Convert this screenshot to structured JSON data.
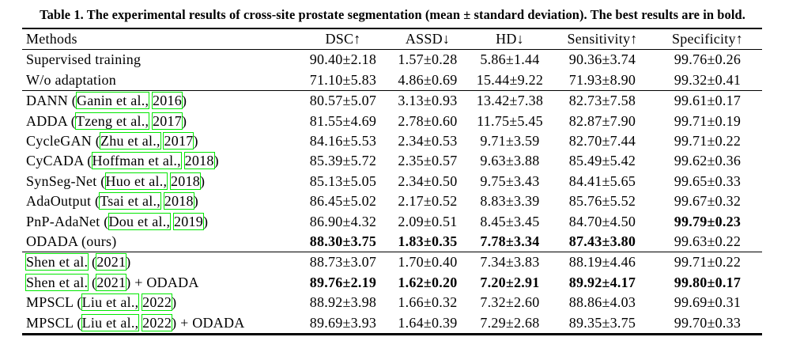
{
  "caption": "Table 1. The experimental results of cross-site prostate segmentation (mean ± standard deviation). The best results are in bold.",
  "colors": {
    "citation_box": "#00e800"
  },
  "table": {
    "columns": [
      "Methods",
      "DSC↑",
      "ASSD↓",
      "HD↓",
      "Sensitivity↑",
      "Specificity↑"
    ],
    "rows": [
      {
        "method": [
          {
            "t": "Supervised training"
          }
        ],
        "values": [
          "90.40±2.18",
          "1.57±0.28",
          "5.86±1.44",
          "90.36±3.74",
          "99.76±0.26"
        ],
        "bold": [
          false,
          false,
          false,
          false,
          false
        ],
        "rule_below": false
      },
      {
        "method": [
          {
            "t": "W/o adaptation"
          }
        ],
        "values": [
          "71.10±5.83",
          "4.86±0.69",
          "15.44±9.22",
          "71.93±8.90",
          "99.32±0.41"
        ],
        "bold": [
          false,
          false,
          false,
          false,
          false
        ],
        "rule_below": true
      },
      {
        "method": [
          {
            "t": "DANN ("
          },
          {
            "t": "Ganin et al.,",
            "box": true
          },
          {
            "t": " "
          },
          {
            "t": "2016",
            "box": true
          },
          {
            "t": ")"
          }
        ],
        "values": [
          "80.57±5.07",
          "3.13±0.93",
          "13.42±7.38",
          "82.73±7.58",
          "99.61±0.17"
        ],
        "bold": [
          false,
          false,
          false,
          false,
          false
        ],
        "rule_below": false
      },
      {
        "method": [
          {
            "t": "ADDA ("
          },
          {
            "t": "Tzeng et al.,",
            "box": true
          },
          {
            "t": " "
          },
          {
            "t": "2017",
            "box": true
          },
          {
            "t": ")"
          }
        ],
        "values": [
          "81.55±4.69",
          "2.78±0.60",
          "11.75±5.45",
          "82.87±7.90",
          "99.71±0.19"
        ],
        "bold": [
          false,
          false,
          false,
          false,
          false
        ],
        "rule_below": false
      },
      {
        "method": [
          {
            "t": "CycleGAN ("
          },
          {
            "t": "Zhu et al.,",
            "box": true
          },
          {
            "t": " "
          },
          {
            "t": "2017",
            "box": true
          },
          {
            "t": ")"
          }
        ],
        "values": [
          "84.16±5.53",
          "2.34±0.53",
          "9.71±3.59",
          "82.70±7.44",
          "99.71±0.22"
        ],
        "bold": [
          false,
          false,
          false,
          false,
          false
        ],
        "rule_below": false
      },
      {
        "method": [
          {
            "t": "CyCADA ("
          },
          {
            "t": "Hoffman et al.,",
            "box": true
          },
          {
            "t": " "
          },
          {
            "t": "2018",
            "box": true
          },
          {
            "t": ")"
          }
        ],
        "values": [
          "85.39±5.72",
          "2.35±0.57",
          "9.63±3.88",
          "85.49±5.42",
          "99.62±0.36"
        ],
        "bold": [
          false,
          false,
          false,
          false,
          false
        ],
        "rule_below": false
      },
      {
        "method": [
          {
            "t": "SynSeg-Net ("
          },
          {
            "t": "Huo et al.,",
            "box": true
          },
          {
            "t": " "
          },
          {
            "t": "2018",
            "box": true
          },
          {
            "t": ")"
          }
        ],
        "values": [
          "85.13±5.05",
          "2.34±0.50",
          "9.75±3.43",
          "84.41±5.65",
          "99.65±0.33"
        ],
        "bold": [
          false,
          false,
          false,
          false,
          false
        ],
        "rule_below": false
      },
      {
        "method": [
          {
            "t": "AdaOutput ("
          },
          {
            "t": "Tsai et al.,",
            "box": true
          },
          {
            "t": " "
          },
          {
            "t": "2018",
            "box": true
          },
          {
            "t": ")"
          }
        ],
        "values": [
          "86.45±5.02",
          "2.17±0.52",
          "8.83±3.39",
          "85.76±5.52",
          "99.67±0.32"
        ],
        "bold": [
          false,
          false,
          false,
          false,
          false
        ],
        "rule_below": false
      },
      {
        "method": [
          {
            "t": "PnP-AdaNet ("
          },
          {
            "t": "Dou et al.,",
            "box": true
          },
          {
            "t": " "
          },
          {
            "t": "2019",
            "box": true
          },
          {
            "t": ")"
          }
        ],
        "values": [
          "86.90±4.32",
          "2.09±0.51",
          "8.45±3.45",
          "84.70±4.50",
          "99.79±0.23"
        ],
        "bold": [
          false,
          false,
          false,
          false,
          true
        ],
        "rule_below": false
      },
      {
        "method": [
          {
            "t": "ODADA (ours)"
          }
        ],
        "values": [
          "88.30±3.75",
          "1.83±0.35",
          "7.78±3.34",
          "87.43±3.80",
          "99.63±0.22"
        ],
        "bold": [
          true,
          true,
          true,
          true,
          false
        ],
        "rule_below": true
      },
      {
        "method": [
          {
            "t": "Shen et al.",
            "box": true
          },
          {
            "t": " ("
          },
          {
            "t": "2021",
            "box": true
          },
          {
            "t": ")"
          }
        ],
        "values": [
          "88.73±3.07",
          "1.70±0.40",
          "7.34±3.83",
          "88.19±4.46",
          "99.71±0.22"
        ],
        "bold": [
          false,
          false,
          false,
          false,
          false
        ],
        "rule_below": false
      },
      {
        "method": [
          {
            "t": "Shen et al.",
            "box": true
          },
          {
            "t": " ("
          },
          {
            "t": "2021",
            "box": true
          },
          {
            "t": ") + ODADA"
          }
        ],
        "values": [
          "89.76±2.19",
          "1.62±0.20",
          "7.20±2.91",
          "89.92±4.17",
          "99.80±0.17"
        ],
        "bold": [
          true,
          true,
          true,
          true,
          true
        ],
        "rule_below": false
      },
      {
        "method": [
          {
            "t": "MPSCL ("
          },
          {
            "t": "Liu et al.,",
            "box": true
          },
          {
            "t": " "
          },
          {
            "t": "2022",
            "box": true
          },
          {
            "t": ")"
          }
        ],
        "values": [
          "88.92±3.98",
          "1.66±0.32",
          "7.32±2.60",
          "88.86±4.03",
          "99.69±0.31"
        ],
        "bold": [
          false,
          false,
          false,
          false,
          false
        ],
        "rule_below": false
      },
      {
        "method": [
          {
            "t": "MPSCL ("
          },
          {
            "t": "Liu et al.,",
            "box": true
          },
          {
            "t": " "
          },
          {
            "t": "2022",
            "box": true
          },
          {
            "t": ") + ODADA"
          }
        ],
        "values": [
          "89.69±3.93",
          "1.64±0.39",
          "7.29±2.68",
          "89.35±3.75",
          "99.70±0.33"
        ],
        "bold": [
          false,
          false,
          false,
          false,
          false
        ],
        "rule_below": false
      }
    ]
  }
}
